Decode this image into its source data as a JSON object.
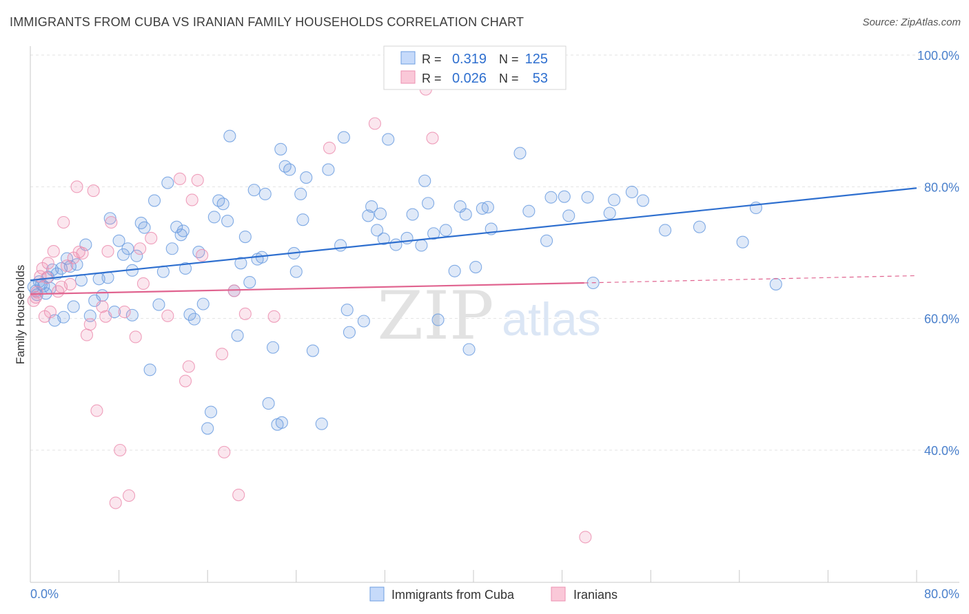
{
  "chart_data": {
    "type": "scatter",
    "title": "IMMIGRANTS FROM CUBA VS IRANIAN FAMILY HOUSEHOLDS CORRELATION CHART",
    "source": "Source: ZipAtlas.com",
    "ylabel": "Family Households",
    "xlabel": "",
    "xlim": [
      0,
      80
    ],
    "ylim": [
      20,
      100
    ],
    "x_tick_labels": {
      "min": "0.0%",
      "max": "80.0%"
    },
    "y_ticks": [
      {
        "value": 40,
        "label": "40.0%"
      },
      {
        "value": 60,
        "label": "60.0%"
      },
      {
        "value": 80,
        "label": "80.0%"
      },
      {
        "value": 100,
        "label": "100.0%"
      }
    ],
    "grid": true,
    "legend_position": "bottom",
    "watermark": {
      "zip": "ZIP",
      "atlas": "atlas"
    },
    "stats": [
      {
        "r_label": "R =",
        "r_value": "0.319",
        "n_label": "N =",
        "n_value": "125",
        "color": "#6c9de0"
      },
      {
        "r_label": "R =",
        "r_value": "0.026",
        "n_label": "N =",
        "n_value": "53",
        "color": "#ec8fb0"
      }
    ],
    "series": [
      {
        "name": "Immigrants from Cuba",
        "color": "#6c9de0",
        "trend": {
          "x0": 0,
          "y0": 65.8,
          "x1": 80,
          "y1": 79.8,
          "color": "#2e6fcf"
        },
        "points": [
          [
            0.3,
            64.8
          ],
          [
            0.5,
            64.2
          ],
          [
            0.6,
            63.6
          ],
          [
            0.8,
            65.6
          ],
          [
            1.0,
            65.2
          ],
          [
            1.2,
            64.9
          ],
          [
            1.4,
            63.8
          ],
          [
            1.6,
            66.3
          ],
          [
            1.8,
            64.6
          ],
          [
            2.0,
            67.4
          ],
          [
            2.2,
            59.7
          ],
          [
            2.4,
            66.8
          ],
          [
            2.8,
            67.6
          ],
          [
            3.0,
            60.2
          ],
          [
            3.3,
            69.1
          ],
          [
            3.6,
            67.9
          ],
          [
            3.9,
            61.8
          ],
          [
            4.2,
            68.2
          ],
          [
            4.6,
            65.8
          ],
          [
            5.0,
            71.2
          ],
          [
            5.4,
            60.4
          ],
          [
            5.8,
            62.7
          ],
          [
            6.2,
            66.0
          ],
          [
            6.5,
            63.5
          ],
          [
            7.0,
            66.2
          ],
          [
            7.2,
            75.2
          ],
          [
            7.6,
            61.0
          ],
          [
            8.0,
            71.8
          ],
          [
            8.4,
            69.7
          ],
          [
            8.8,
            70.6
          ],
          [
            9.2,
            67.3
          ],
          [
            9.6,
            69.5
          ],
          [
            10.0,
            74.5
          ],
          [
            10.3,
            73.8
          ],
          [
            10.8,
            52.2
          ],
          [
            11.2,
            77.9
          ],
          [
            11.6,
            62.1
          ],
          [
            12.0,
            67.1
          ],
          [
            12.4,
            80.6
          ],
          [
            12.8,
            70.6
          ],
          [
            13.2,
            73.9
          ],
          [
            13.6,
            72.7
          ],
          [
            14.0,
            67.6
          ],
          [
            14.4,
            60.6
          ],
          [
            14.8,
            59.9
          ],
          [
            15.2,
            70.1
          ],
          [
            15.6,
            62.2
          ],
          [
            16.0,
            43.3
          ],
          [
            16.3,
            45.8
          ],
          [
            16.6,
            75.4
          ],
          [
            17.0,
            77.9
          ],
          [
            17.4,
            77.4
          ],
          [
            17.8,
            74.8
          ],
          [
            18.0,
            87.7
          ],
          [
            18.4,
            64.2
          ],
          [
            18.7,
            57.4
          ],
          [
            19.0,
            68.4
          ],
          [
            19.4,
            72.4
          ],
          [
            19.8,
            65.5
          ],
          [
            20.2,
            79.5
          ],
          [
            20.5,
            69.0
          ],
          [
            20.9,
            69.3
          ],
          [
            21.2,
            78.9
          ],
          [
            21.5,
            47.1
          ],
          [
            21.9,
            55.6
          ],
          [
            22.3,
            43.9
          ],
          [
            22.6,
            85.7
          ],
          [
            23.0,
            83.1
          ],
          [
            23.4,
            82.6
          ],
          [
            23.8,
            69.9
          ],
          [
            24.0,
            67.1
          ],
          [
            24.4,
            78.9
          ],
          [
            24.6,
            75.0
          ],
          [
            24.9,
            81.4
          ],
          [
            25.5,
            55.1
          ],
          [
            26.3,
            44.0
          ],
          [
            26.9,
            82.6
          ],
          [
            28.0,
            71.1
          ],
          [
            28.3,
            87.5
          ],
          [
            28.6,
            61.3
          ],
          [
            28.8,
            57.9
          ],
          [
            30.1,
            59.6
          ],
          [
            30.5,
            75.6
          ],
          [
            30.8,
            77.0
          ],
          [
            31.3,
            73.4
          ],
          [
            31.6,
            75.9
          ],
          [
            31.9,
            72.1
          ],
          [
            32.3,
            87.2
          ],
          [
            33.0,
            71.2
          ],
          [
            34.0,
            72.2
          ],
          [
            34.5,
            75.8
          ],
          [
            35.3,
            71.1
          ],
          [
            35.6,
            80.9
          ],
          [
            35.9,
            77.5
          ],
          [
            36.4,
            72.9
          ],
          [
            36.8,
            59.8
          ],
          [
            37.5,
            73.4
          ],
          [
            38.3,
            67.2
          ],
          [
            38.8,
            77.0
          ],
          [
            39.3,
            75.8
          ],
          [
            39.6,
            55.3
          ],
          [
            40.2,
            67.8
          ],
          [
            40.8,
            76.7
          ],
          [
            41.3,
            76.9
          ],
          [
            41.6,
            73.6
          ],
          [
            44.2,
            85.1
          ],
          [
            45.0,
            76.3
          ],
          [
            46.6,
            71.8
          ],
          [
            47.0,
            78.4
          ],
          [
            48.2,
            78.5
          ],
          [
            48.6,
            75.6
          ],
          [
            50.3,
            78.4
          ],
          [
            50.8,
            65.4
          ],
          [
            52.3,
            76.0
          ],
          [
            52.7,
            78.0
          ],
          [
            54.3,
            79.2
          ],
          [
            55.3,
            77.9
          ],
          [
            57.3,
            73.4
          ],
          [
            60.4,
            73.9
          ],
          [
            64.3,
            71.6
          ],
          [
            65.5,
            76.8
          ],
          [
            67.3,
            65.2
          ],
          [
            22.7,
            44.2
          ],
          [
            13.8,
            73.3
          ],
          [
            9.2,
            60.5
          ]
        ]
      },
      {
        "name": "Iranians",
        "color": "#ec8fb0",
        "trend": {
          "x0": 0,
          "y0": 63.7,
          "x1": 50,
          "y1": 65.4,
          "dash_x1": 80,
          "dash_y1": 66.5,
          "color": "#e0638f"
        },
        "points": [
          [
            0.3,
            62.7
          ],
          [
            0.5,
            63.2
          ],
          [
            0.9,
            66.4
          ],
          [
            1.1,
            67.6
          ],
          [
            1.3,
            60.3
          ],
          [
            1.5,
            66.2
          ],
          [
            1.8,
            61.0
          ],
          [
            2.1,
            70.2
          ],
          [
            2.5,
            64.1
          ],
          [
            2.8,
            64.8
          ],
          [
            3.0,
            74.6
          ],
          [
            3.3,
            68.0
          ],
          [
            3.6,
            65.2
          ],
          [
            3.9,
            69.2
          ],
          [
            4.2,
            80.0
          ],
          [
            4.4,
            70.1
          ],
          [
            4.7,
            69.9
          ],
          [
            5.1,
            57.5
          ],
          [
            5.4,
            59.1
          ],
          [
            5.7,
            79.4
          ],
          [
            6.0,
            46.0
          ],
          [
            6.5,
            61.8
          ],
          [
            6.8,
            60.3
          ],
          [
            7.0,
            70.2
          ],
          [
            7.3,
            74.6
          ],
          [
            7.7,
            32.0
          ],
          [
            8.1,
            40.0
          ],
          [
            8.5,
            61.0
          ],
          [
            8.9,
            33.1
          ],
          [
            9.5,
            57.2
          ],
          [
            9.9,
            70.6
          ],
          [
            10.2,
            65.3
          ],
          [
            10.9,
            72.2
          ],
          [
            12.4,
            60.4
          ],
          [
            13.5,
            81.2
          ],
          [
            14.0,
            50.5
          ],
          [
            14.3,
            52.7
          ],
          [
            14.6,
            78.0
          ],
          [
            15.1,
            81.0
          ],
          [
            15.5,
            69.6
          ],
          [
            17.3,
            54.6
          ],
          [
            17.5,
            39.7
          ],
          [
            18.4,
            64.2
          ],
          [
            18.8,
            33.2
          ],
          [
            19.4,
            60.7
          ],
          [
            22.0,
            60.3
          ],
          [
            27.0,
            85.9
          ],
          [
            31.1,
            89.6
          ],
          [
            35.7,
            94.8
          ],
          [
            36.3,
            87.4
          ],
          [
            50.1,
            26.8
          ],
          [
            0.6,
            64.0
          ],
          [
            1.6,
            68.4
          ]
        ]
      }
    ]
  }
}
